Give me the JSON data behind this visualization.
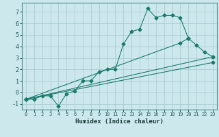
{
  "xlabel": "Humidex (Indice chaleur)",
  "bg_color": "#cde8ec",
  "grid_color": "#aacdd4",
  "line_color": "#1a7a6e",
  "xlim": [
    -0.5,
    23.5
  ],
  "ylim": [
    -1.5,
    7.8
  ],
  "xticks": [
    0,
    1,
    2,
    3,
    4,
    5,
    6,
    7,
    8,
    9,
    10,
    11,
    12,
    13,
    14,
    15,
    16,
    17,
    18,
    19,
    20,
    21,
    22,
    23
  ],
  "yticks": [
    -1,
    0,
    1,
    2,
    3,
    4,
    5,
    6,
    7
  ],
  "line1_x": [
    0,
    1,
    2,
    3,
    4,
    5,
    6,
    7,
    8,
    9,
    10,
    11,
    12,
    13,
    14,
    15,
    16,
    17,
    18,
    19,
    20
  ],
  "line1_y": [
    -0.6,
    -0.6,
    -0.3,
    -0.3,
    -1.2,
    -0.1,
    0.1,
    1.0,
    1.0,
    1.8,
    2.0,
    2.0,
    4.2,
    5.3,
    5.5,
    7.3,
    6.5,
    6.7,
    6.7,
    6.5,
    4.7
  ],
  "line2_x": [
    0,
    19,
    20,
    21,
    22,
    23
  ],
  "line2_y": [
    -0.6,
    4.3,
    4.7,
    4.1,
    3.5,
    3.1
  ],
  "line3_x": [
    0,
    23
  ],
  "line3_y": [
    -0.6,
    3.1
  ],
  "line4_x": [
    0,
    23
  ],
  "line4_y": [
    -0.6,
    2.6
  ]
}
